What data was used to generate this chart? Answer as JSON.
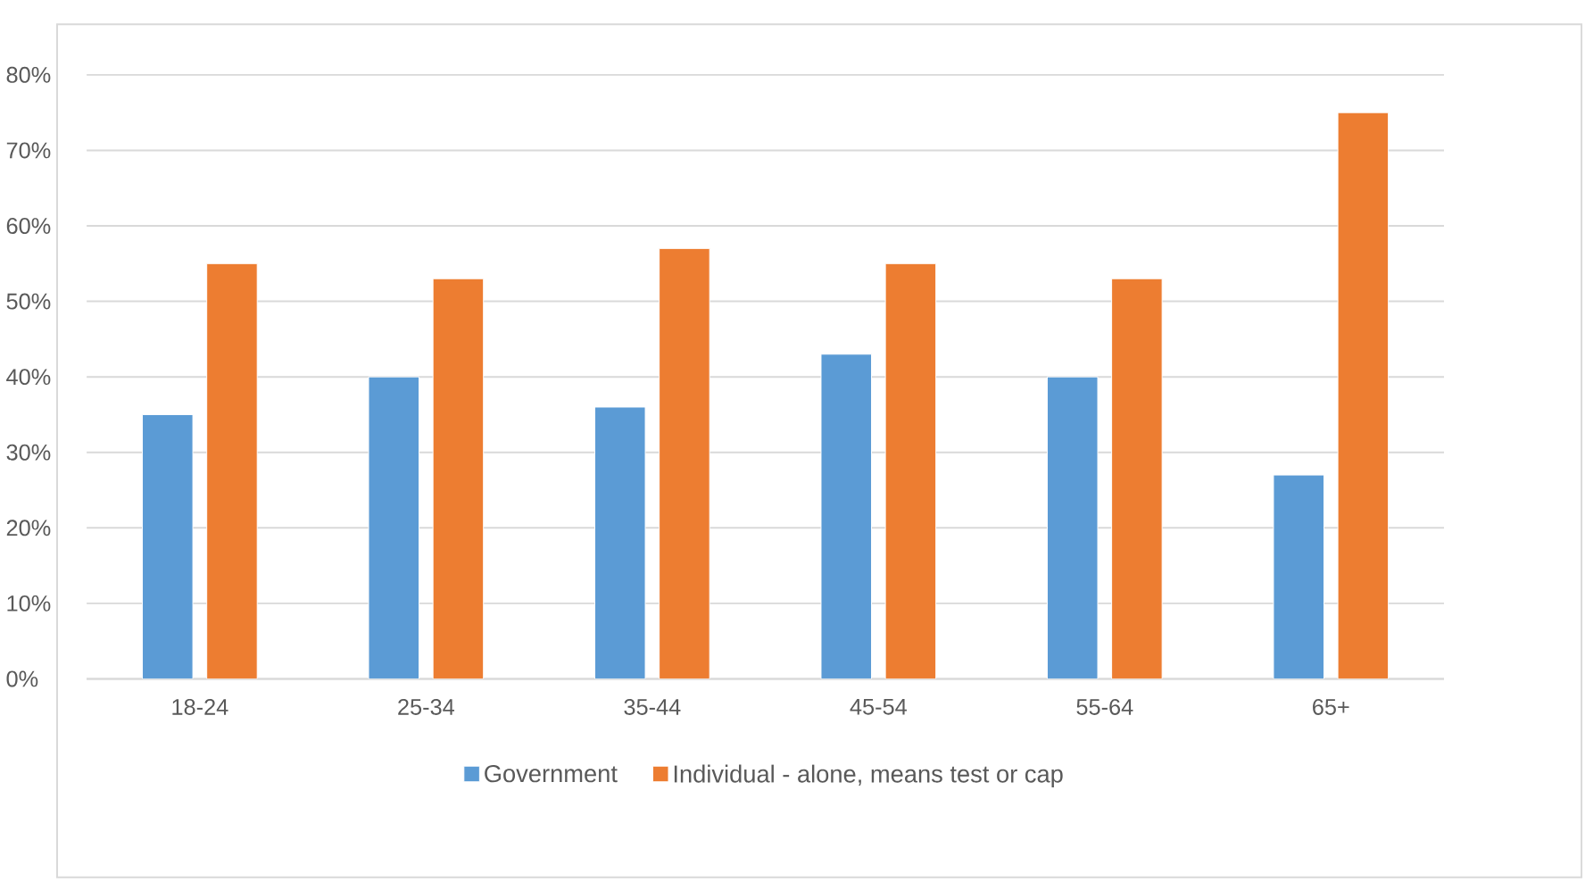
{
  "chart_data": {
    "type": "bar",
    "categories": [
      "18-24",
      "25-34",
      "35-44",
      "45-54",
      "55-64",
      "65+"
    ],
    "series": [
      {
        "name": "Government",
        "color": "#5b9bd5",
        "values": [
          35,
          40,
          36,
          43,
          40,
          27
        ]
      },
      {
        "name": "Individual - alone, means test or cap",
        "color": "#ed7d31",
        "values": [
          55,
          53,
          57,
          55,
          53,
          75
        ]
      }
    ],
    "ylim": [
      0,
      80
    ],
    "yticks": [
      {
        "value": 0,
        "label": "0%"
      },
      {
        "value": 10,
        "label": "10%"
      },
      {
        "value": 20,
        "label": "20%"
      },
      {
        "value": 30,
        "label": "30%"
      },
      {
        "value": 40,
        "label": "40%"
      },
      {
        "value": 50,
        "label": "50%"
      },
      {
        "value": 60,
        "label": "60%"
      },
      {
        "value": 70,
        "label": "70%"
      },
      {
        "value": 80,
        "label": "80%"
      }
    ],
    "grid": "y",
    "legend": "bottom"
  }
}
